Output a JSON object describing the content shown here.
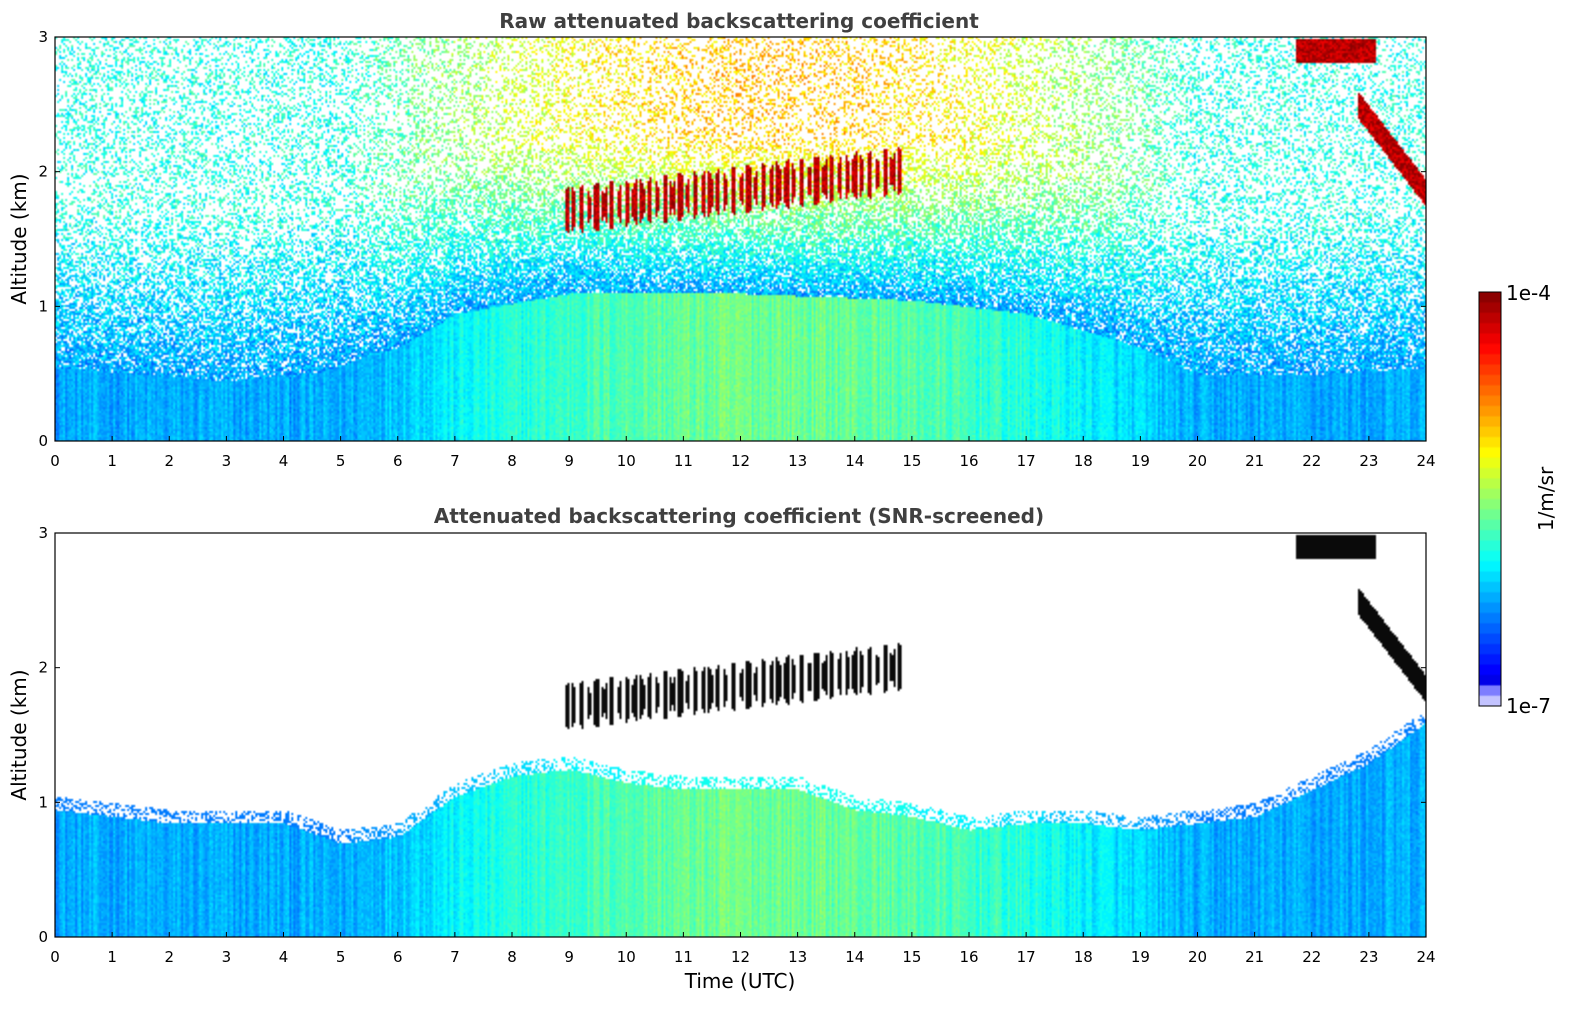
{
  "chart_data": [
    {
      "type": "heatmap",
      "title": "Raw attenuated backscattering coefficient",
      "xlabel": "",
      "ylabel": "Altitude (km)",
      "xlim": [
        0,
        24
      ],
      "ylim": [
        0,
        3
      ],
      "xticks": [
        "0",
        "1",
        "2",
        "3",
        "4",
        "5",
        "6",
        "7",
        "8",
        "9",
        "10",
        "11",
        "12",
        "13",
        "14",
        "15",
        "16",
        "17",
        "18",
        "19",
        "20",
        "21",
        "22",
        "23",
        "24"
      ],
      "yticks": [
        "0",
        "1",
        "2",
        "3"
      ],
      "variable": "raw",
      "features": {
        "boundary_layer_top_km": [
          [
            0,
            0.55
          ],
          [
            3,
            0.45
          ],
          [
            4.5,
            0.5
          ],
          [
            6,
            0.7
          ],
          [
            7,
            0.95
          ],
          [
            9,
            1.1
          ],
          [
            12,
            1.1
          ],
          [
            15,
            1.05
          ],
          [
            17,
            0.95
          ],
          [
            19,
            0.7
          ],
          [
            20,
            0.5
          ],
          [
            22,
            0.5
          ],
          [
            24,
            0.55
          ]
        ],
        "cloud_layers": [
          {
            "x_start": 8.9,
            "x_end": 14.8,
            "alt_min_km": 1.6,
            "alt_max_km": 2.15
          },
          {
            "x_start": 21.7,
            "x_end": 23.1,
            "alt_min_km": 2.75,
            "alt_max_km": 3.0
          },
          {
            "x_start": 22.8,
            "x_end": 24,
            "alt_min_km": 1.7,
            "alt_max_km": 2.5
          }
        ]
      }
    },
    {
      "type": "heatmap",
      "title": "Attenuated backscattering coefficient (SNR-screened)",
      "xlabel": "Time (UTC)",
      "ylabel": "Altitude (km)",
      "xlim": [
        0,
        24
      ],
      "ylim": [
        0,
        3
      ],
      "xticks": [
        "0",
        "1",
        "2",
        "3",
        "4",
        "5",
        "6",
        "7",
        "8",
        "9",
        "10",
        "11",
        "12",
        "13",
        "14",
        "15",
        "16",
        "17",
        "18",
        "19",
        "20",
        "21",
        "22",
        "23",
        "24"
      ],
      "yticks": [
        "0",
        "1",
        "2",
        "3"
      ],
      "variable": "screened",
      "features": {
        "signal_top_km": [
          [
            0,
            0.95
          ],
          [
            1,
            0.9
          ],
          [
            2,
            0.85
          ],
          [
            3,
            0.85
          ],
          [
            4,
            0.85
          ],
          [
            5,
            0.7
          ],
          [
            6,
            0.75
          ],
          [
            7,
            1.05
          ],
          [
            8,
            1.2
          ],
          [
            9,
            1.25
          ],
          [
            10,
            1.15
          ],
          [
            11,
            1.1
          ],
          [
            12,
            1.1
          ],
          [
            13,
            1.1
          ],
          [
            14,
            0.95
          ],
          [
            15,
            0.9
          ],
          [
            16,
            0.8
          ],
          [
            17,
            0.85
          ],
          [
            18,
            0.85
          ],
          [
            19,
            0.8
          ],
          [
            20,
            0.85
          ],
          [
            21,
            0.9
          ],
          [
            22,
            1.1
          ],
          [
            23,
            1.3
          ],
          [
            24,
            1.6
          ]
        ]
      }
    }
  ],
  "colorbar": {
    "label": "1/m/sr",
    "max_label": "1e-4",
    "min_label": "1e-7",
    "scale": "log",
    "colormap": "jet"
  },
  "colors": {
    "title": "#404040",
    "axis": "#000000"
  }
}
